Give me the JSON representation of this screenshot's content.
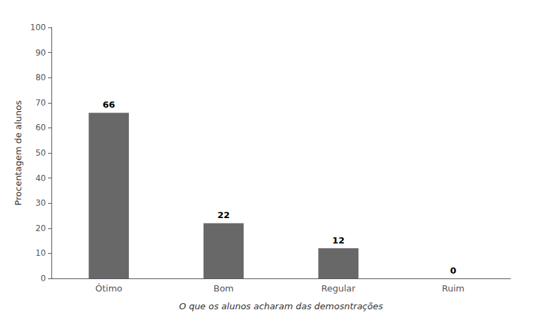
{
  "chart_data": {
    "type": "bar",
    "categories": [
      "Ótimo",
      "Bom",
      "Regular",
      "Ruim"
    ],
    "values": [
      66,
      22,
      12,
      0
    ],
    "color": "#686868",
    "xlabel": "O que os alunos acharam das demosntrações",
    "ylabel": "Procentagem de alunos",
    "ylim": [
      0,
      100
    ],
    "yticks": [
      0,
      10,
      20,
      30,
      40,
      50,
      60,
      70,
      80,
      90,
      100
    ],
    "grid": false,
    "data_labels": true
  }
}
